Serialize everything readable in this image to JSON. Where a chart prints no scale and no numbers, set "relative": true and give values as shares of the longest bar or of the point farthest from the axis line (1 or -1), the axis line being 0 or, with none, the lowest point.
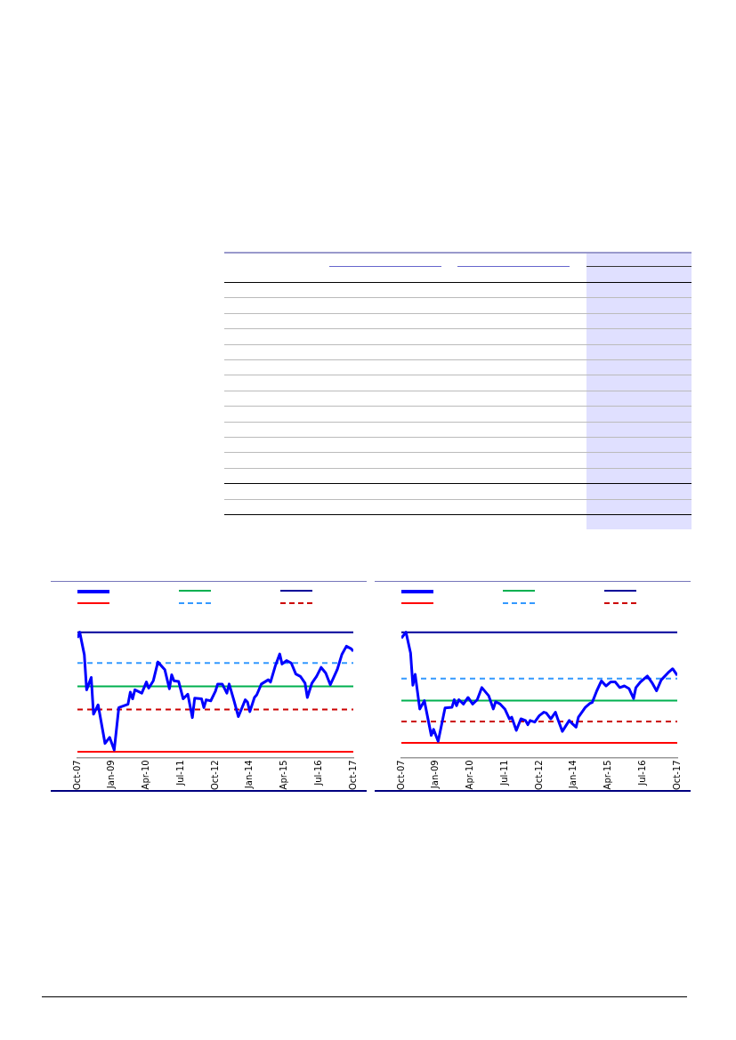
{
  "chart_data": [
    {
      "type": "line",
      "relative": true,
      "marker": "none",
      "color": "#0000ff",
      "x": [
        "2007-10",
        "2007-11",
        "2008-01",
        "2008-02",
        "2008-04",
        "2008-05",
        "2008-07",
        "2008-10",
        "2008-12",
        "2009-02",
        "2009-04",
        "2009-08",
        "2009-09",
        "2009-10",
        "2009-11",
        "2010-02",
        "2010-04",
        "2010-05",
        "2010-07",
        "2010-09",
        "2010-12",
        "2011-02",
        "2011-03",
        "2011-04",
        "2011-06",
        "2011-08",
        "2011-10",
        "2011-12",
        "2012-01",
        "2012-04",
        "2012-05",
        "2012-06",
        "2012-08",
        "2012-10",
        "2012-11",
        "2013-01",
        "2013-03",
        "2013-04",
        "2013-06",
        "2013-08",
        "2013-11",
        "2013-12",
        "2014-01",
        "2014-03",
        "2014-04",
        "2014-06",
        "2014-09",
        "2014-10",
        "2014-12",
        "2015-02",
        "2015-03",
        "2015-05",
        "2015-07",
        "2015-09",
        "2015-11",
        "2016-01",
        "2016-02",
        "2016-04",
        "2016-06",
        "2016-08",
        "2016-10",
        "2016-12",
        "2017-03",
        "2017-05",
        "2017-07",
        "2017-09",
        "2017-10"
      ],
      "values": [
        0.955,
        1.0,
        0.821,
        0.54,
        0.639,
        0.345,
        0.42,
        0.112,
        0.16,
        0.059,
        0.398,
        0.425,
        0.521,
        0.468,
        0.54,
        0.513,
        0.602,
        0.553,
        0.612,
        0.762,
        0.701,
        0.548,
        0.66,
        0.612,
        0.607,
        0.468,
        0.505,
        0.318,
        0.473,
        0.468,
        0.398,
        0.46,
        0.452,
        0.527,
        0.586,
        0.586,
        0.513,
        0.586,
        0.46,
        0.326,
        0.46,
        0.441,
        0.366,
        0.479,
        0.5,
        0.586,
        0.62,
        0.602,
        0.727,
        0.826,
        0.746,
        0.773,
        0.754,
        0.666,
        0.647,
        0.594,
        0.479,
        0.594,
        0.647,
        0.719,
        0.674,
        0.58,
        0.701,
        0.821,
        0.888,
        0.869,
        0.848
      ],
      "xlim": [
        "2007-10",
        "2017-10"
      ],
      "xticks": [
        {
          "value": "2007-10",
          "label": "Oct-07"
        },
        {
          "value": "2009-01",
          "label": "Jan-09"
        },
        {
          "value": "2010-04",
          "label": "Apr-10"
        },
        {
          "value": "2011-07",
          "label": "Jul-11"
        },
        {
          "value": "2012-10",
          "label": "Oct-12"
        },
        {
          "value": "2014-01",
          "label": "Jan-14"
        },
        {
          "value": "2015-04",
          "label": "Apr-15"
        },
        {
          "value": "2016-07",
          "label": "Jul-16"
        },
        {
          "value": "2017-10",
          "label": "Oct-17"
        }
      ],
      "ref_lines": [
        {
          "axis": "y",
          "value": 0.567,
          "color": "#00b050",
          "line_style": "solid"
        },
        {
          "axis": "y",
          "value": 1.0,
          "color": "#000099",
          "line_style": "solid"
        },
        {
          "axis": "y",
          "value": 0.045,
          "color": "#ff0000",
          "line_style": "solid"
        },
        {
          "axis": "y",
          "value": 0.754,
          "color": "#3399ff",
          "line_style": "dashed"
        },
        {
          "axis": "y",
          "value": 0.382,
          "color": "#cc0000",
          "line_style": "dashed"
        }
      ]
    },
    {
      "type": "line",
      "relative": true,
      "marker": "none",
      "color": "#0000ff",
      "x": [
        "2007-10",
        "2007-12",
        "2008-02",
        "2008-03",
        "2008-04",
        "2008-06",
        "2008-08",
        "2008-11",
        "2008-12",
        "2009-02",
        "2009-05",
        "2009-08",
        "2009-09",
        "2009-10",
        "2009-11",
        "2010-01",
        "2010-03",
        "2010-05",
        "2010-07",
        "2010-09",
        "2010-12",
        "2011-02",
        "2011-03",
        "2011-05",
        "2011-07",
        "2011-09",
        "2011-10",
        "2011-12",
        "2012-02",
        "2012-04",
        "2012-05",
        "2012-06",
        "2012-08",
        "2012-10",
        "2012-12",
        "2013-01",
        "2013-03",
        "2013-05",
        "2013-06",
        "2013-08",
        "2013-11",
        "2013-12",
        "2014-02",
        "2014-03",
        "2014-06",
        "2014-08",
        "2014-09",
        "2014-11",
        "2015-01",
        "2015-03",
        "2015-05",
        "2015-07",
        "2015-09",
        "2015-11",
        "2016-01",
        "2016-03",
        "2016-04",
        "2016-06",
        "2016-09",
        "2016-11",
        "2017-01",
        "2017-03",
        "2017-06",
        "2017-08",
        "2017-09",
        "2017-10"
      ],
      "values": [
        0.953,
        1.0,
        0.834,
        0.576,
        0.663,
        0.387,
        0.453,
        0.176,
        0.224,
        0.129,
        0.395,
        0.4,
        0.461,
        0.413,
        0.461,
        0.426,
        0.479,
        0.426,
        0.461,
        0.558,
        0.492,
        0.387,
        0.445,
        0.426,
        0.387,
        0.308,
        0.321,
        0.216,
        0.308,
        0.295,
        0.261,
        0.295,
        0.282,
        0.334,
        0.361,
        0.355,
        0.308,
        0.361,
        0.308,
        0.208,
        0.295,
        0.276,
        0.242,
        0.321,
        0.4,
        0.432,
        0.439,
        0.532,
        0.611,
        0.571,
        0.603,
        0.603,
        0.558,
        0.571,
        0.55,
        0.471,
        0.558,
        0.603,
        0.65,
        0.597,
        0.532,
        0.618,
        0.676,
        0.708,
        0.682,
        0.655
      ],
      "xlim": [
        "2007-10",
        "2017-10"
      ],
      "xticks": [
        {
          "value": "2007-10",
          "label": "Oct-07"
        },
        {
          "value": "2009-01",
          "label": "Jan-09"
        },
        {
          "value": "2010-04",
          "label": "Apr-10"
        },
        {
          "value": "2011-07",
          "label": "Jul-11"
        },
        {
          "value": "2012-10",
          "label": "Oct-12"
        },
        {
          "value": "2014-01",
          "label": "Jan-14"
        },
        {
          "value": "2015-04",
          "label": "Apr-15"
        },
        {
          "value": "2016-07",
          "label": "Jul-16"
        },
        {
          "value": "2017-10",
          "label": "Oct-17"
        }
      ],
      "ref_lines": [
        {
          "axis": "y",
          "value": 0.453,
          "color": "#00b050",
          "line_style": "solid"
        },
        {
          "axis": "y",
          "value": 1.0,
          "color": "#000099",
          "line_style": "solid"
        },
        {
          "axis": "y",
          "value": 0.116,
          "color": "#ff0000",
          "line_style": "solid"
        },
        {
          "axis": "y",
          "value": 0.629,
          "color": "#3399ff",
          "line_style": "dashed"
        },
        {
          "axis": "y",
          "value": 0.287,
          "color": "#cc0000",
          "line_style": "dashed"
        }
      ]
    }
  ]
}
